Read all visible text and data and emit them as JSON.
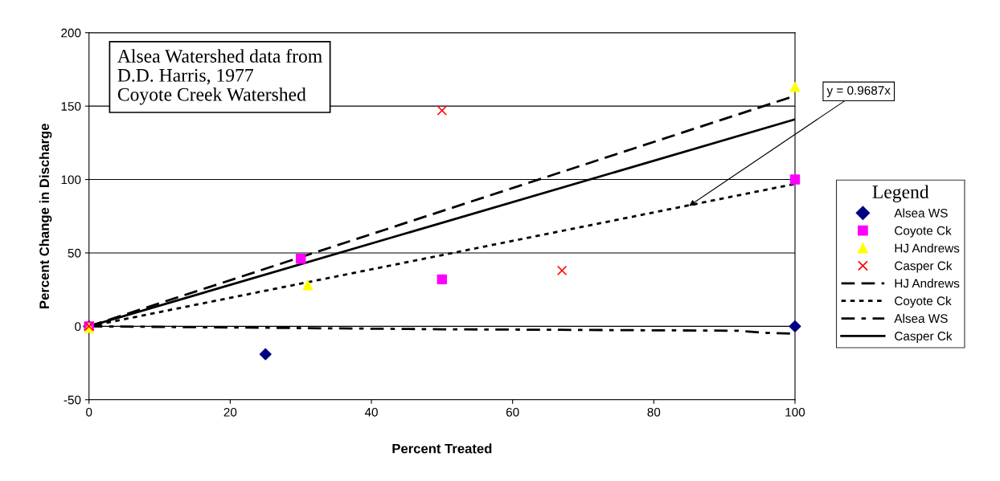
{
  "chart_data": {
    "type": "scatter",
    "xlabel": "Percent Treated",
    "ylabel": "Percent Change in Discharge",
    "legend_title": "Legend",
    "legend": "right",
    "grid": "y",
    "xlim": [
      0,
      100
    ],
    "ylim": [
      -50,
      200
    ],
    "xticks": [
      0,
      20,
      40,
      60,
      80,
      100
    ],
    "yticks": [
      -50,
      0,
      50,
      100,
      150,
      200
    ],
    "annotations": [
      "Alsea Watershed data from\nD.D. Harris, 1977\nCoyote Creek Watershed",
      {
        "text": "y = 0.9687x",
        "x": 85,
        "y": 82
      }
    ],
    "series": [
      {
        "name": "Alsea WS",
        "marker": "diamond",
        "color": "#000080",
        "x": [
          0,
          25,
          100
        ],
        "values": [
          0,
          -19,
          0
        ]
      },
      {
        "name": "Coyote Ck",
        "marker": "square",
        "color": "#ff00ff",
        "x": [
          0,
          30,
          50,
          100
        ],
        "values": [
          0,
          46,
          32,
          100
        ]
      },
      {
        "name": "HJ Andrews",
        "marker": "triangle",
        "color": "#ffff00",
        "x": [
          0,
          31,
          100
        ],
        "values": [
          -1,
          28,
          163
        ]
      },
      {
        "name": "Casper Ck",
        "marker": "cross",
        "color": "#ff0000",
        "x": [
          0,
          50,
          67
        ],
        "values": [
          0,
          147,
          38
        ]
      },
      {
        "name": "HJ Andrews",
        "type": "line",
        "line_style": "dashed",
        "color": "#000000",
        "x": [
          0,
          100
        ],
        "values": [
          0,
          157
        ]
      },
      {
        "name": "Coyote Ck",
        "type": "line",
        "line_style": "dotted",
        "color": "#000000",
        "x": [
          0,
          100
        ],
        "values": [
          0,
          97
        ]
      },
      {
        "name": "Alsea WS",
        "type": "line",
        "line_style": "dashdot",
        "color": "#000000",
        "x": [
          0,
          50,
          92,
          96,
          100
        ],
        "values": [
          0,
          -2,
          -3,
          -4.5,
          -5
        ]
      },
      {
        "name": "Casper Ck",
        "type": "line",
        "line_style": "solid",
        "color": "#000000",
        "x": [
          0,
          100
        ],
        "values": [
          0,
          141
        ]
      }
    ]
  }
}
